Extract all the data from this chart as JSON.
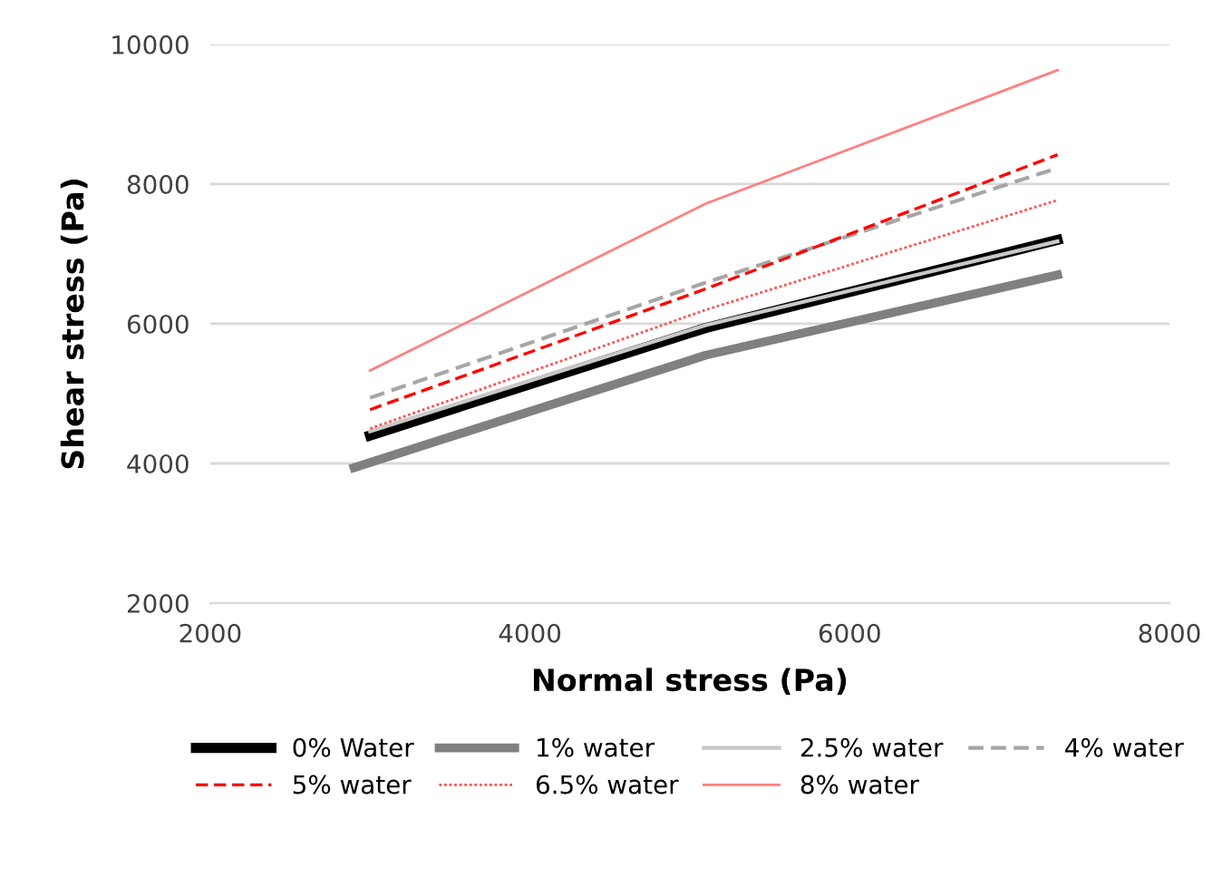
{
  "chart_data": {
    "type": "line",
    "xlabel": "Normal stress (Pa)",
    "ylabel": "Shear stress (Pa)",
    "xlim": [
      2000,
      8000
    ],
    "xticks": [
      2000,
      4000,
      6000,
      8000
    ],
    "ylim": [
      2000,
      10000
    ],
    "yticks": [
      2000,
      4000,
      6000,
      8000,
      10000
    ],
    "grid": "y",
    "legend": "bottom",
    "marker": "none",
    "series": [
      {
        "name": "0% Water",
        "color": "#000000",
        "line_style": "solid",
        "x": [
          3000,
          5100,
          7300
        ],
        "values": [
          4400,
          5940,
          7200
        ]
      },
      {
        "name": "1% water",
        "color": "#808080",
        "line_style": "solid",
        "x": [
          2900,
          5100,
          7300
        ],
        "values": [
          3940,
          5550,
          6700
        ]
      },
      {
        "name": "2.5% water",
        "color": "#c8c8c8",
        "line_style": "solid",
        "x": [
          3000,
          5100,
          7300
        ],
        "values": [
          4460,
          5980,
          7180
        ]
      },
      {
        "name": "4% water",
        "color": "#a6a6a6",
        "line_style": "dashed",
        "x": [
          3000,
          5100,
          7300
        ],
        "values": [
          4940,
          6590,
          8230
        ]
      },
      {
        "name": "5% water",
        "color": "#ff0000",
        "line_style": "dashed",
        "x": [
          3000,
          5100,
          7300
        ],
        "values": [
          4770,
          6500,
          8420
        ]
      },
      {
        "name": "6.5% water",
        "color": "#ff5050",
        "line_style": "dotted",
        "x": [
          3000,
          5100,
          7300
        ],
        "values": [
          4500,
          6200,
          7770
        ]
      },
      {
        "name": "8% water",
        "color": "#ff8080",
        "line_style": "solid",
        "x": [
          3000,
          5100,
          7300
        ],
        "values": [
          5330,
          7720,
          9630
        ]
      }
    ]
  }
}
